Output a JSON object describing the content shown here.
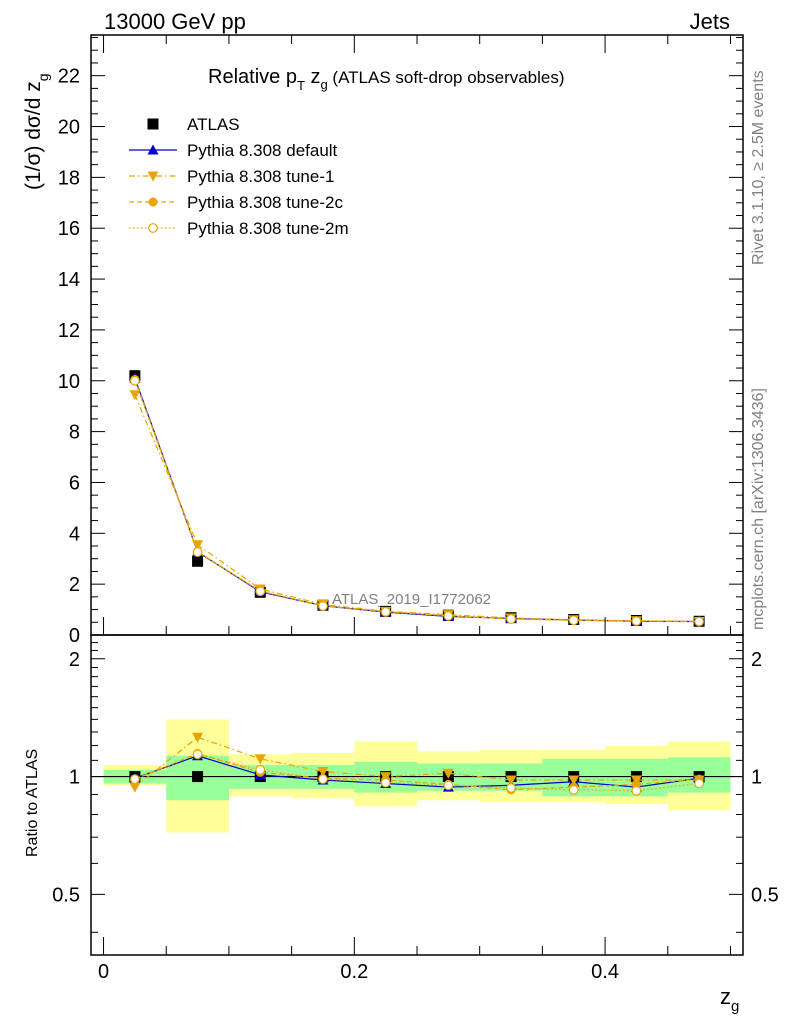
{
  "header": {
    "left": "13000 GeV pp",
    "right": "Jets",
    "side_top": "Rivet 3.1.10, ≥ 2.5M events",
    "side_bottom": "mcplots.cern.ch [arXiv:1306.3436]"
  },
  "title": {
    "main": "Relative p",
    "sub_T": "T",
    "after": " z",
    "sub_g": "g",
    "paren": " (ATLAS soft-drop observables)"
  },
  "watermark": "ATLAS_2019_I1772062",
  "ylabel_main": "(1/σ) dσ/d z",
  "ylabel_sub": "g",
  "ylabel_ratio": "Ratio to ATLAS",
  "xlabel_main": "z",
  "xlabel_sub": "g",
  "colors": {
    "data": "#000000",
    "default": "#0000cc",
    "tune": "#e8a400",
    "band_inner": "#99ff99",
    "band_outer": "#ffff99"
  },
  "chart_data": {
    "type": "line",
    "x": [
      0.025,
      0.075,
      0.125,
      0.175,
      0.225,
      0.275,
      0.325,
      0.375,
      0.425,
      0.475
    ],
    "bin_edges": [
      0.0,
      0.05,
      0.1,
      0.15,
      0.2,
      0.25,
      0.3,
      0.35,
      0.4,
      0.45,
      0.5
    ],
    "xlim": [
      -0.01,
      0.51
    ],
    "main": {
      "ylim": [
        0,
        23.6
      ],
      "yticks": [
        0,
        2,
        4,
        6,
        8,
        10,
        12,
        14,
        16,
        18,
        20,
        22
      ],
      "ytick_labels": [
        "0",
        "2",
        "4",
        "6",
        "8",
        "10",
        "12",
        "14",
        "16",
        "18",
        "20",
        "22"
      ]
    },
    "ratio": {
      "ylim": [
        0.35,
        2.3
      ],
      "yticks": [
        0.5,
        1,
        2
      ],
      "ytick_labels": [
        "0.5",
        "1",
        "2"
      ],
      "band_inner": [
        [
          0.96,
          1.04
        ],
        [
          0.87,
          1.13
        ],
        [
          0.93,
          1.07
        ],
        [
          0.93,
          1.07
        ],
        [
          0.91,
          1.09
        ],
        [
          0.92,
          1.08
        ],
        [
          0.92,
          1.08
        ],
        [
          0.89,
          1.11
        ],
        [
          0.89,
          1.11
        ],
        [
          0.91,
          1.12
        ]
      ],
      "band_outer": [
        [
          0.95,
          1.07
        ],
        [
          0.72,
          1.4
        ],
        [
          0.89,
          1.14
        ],
        [
          0.88,
          1.15
        ],
        [
          0.84,
          1.23
        ],
        [
          0.87,
          1.16
        ],
        [
          0.86,
          1.17
        ],
        [
          0.86,
          1.17
        ],
        [
          0.85,
          1.2
        ],
        [
          0.82,
          1.23
        ]
      ]
    },
    "xticks": [
      0,
      0.2,
      0.4
    ],
    "xtick_labels": [
      "0",
      "0.2",
      "0.4"
    ],
    "series": [
      {
        "name": "ATLAS",
        "marker": "square",
        "values": [
          10.2,
          2.9,
          1.68,
          1.17,
          0.93,
          0.78,
          0.68,
          0.61,
          0.57,
          0.54
        ],
        "ratio": [
          1.0,
          1.0,
          1.0,
          1.0,
          1.0,
          1.0,
          1.0,
          1.0,
          1.0,
          1.0
        ]
      },
      {
        "name": "Pythia 8.308 default",
        "marker": "triangle-up",
        "style": "solid",
        "values": [
          10.1,
          3.27,
          1.7,
          1.15,
          0.9,
          0.73,
          0.65,
          0.59,
          0.54,
          0.53
        ],
        "ratio": [
          0.99,
          1.13,
          1.01,
          0.98,
          0.96,
          0.94,
          0.95,
          0.97,
          0.94,
          0.99
        ]
      },
      {
        "name": "Pythia 8.308 tune-1",
        "marker": "triangle-down",
        "style": "dashdot",
        "values": [
          9.45,
          3.55,
          1.81,
          1.2,
          0.93,
          0.8,
          0.67,
          0.6,
          0.56,
          0.53
        ],
        "ratio": [
          0.94,
          1.26,
          1.11,
          1.03,
          1.0,
          1.02,
          0.98,
          0.98,
          0.98,
          0.98
        ]
      },
      {
        "name": "Pythia 8.308 tune-2c",
        "marker": "circle",
        "style": "dashed",
        "values": [
          10.05,
          3.28,
          1.73,
          1.15,
          0.92,
          0.76,
          0.63,
          0.58,
          0.55,
          0.54
        ],
        "ratio": [
          0.985,
          1.145,
          1.025,
          0.99,
          0.98,
          0.955,
          0.925,
          0.94,
          0.955,
          0.985
        ]
      },
      {
        "name": "Pythia 8.308 tune-2m",
        "marker": "circle-open",
        "style": "dotted",
        "values": [
          10.0,
          3.26,
          1.72,
          1.14,
          0.91,
          0.75,
          0.63,
          0.58,
          0.55,
          0.53
        ],
        "ratio": [
          0.985,
          1.14,
          1.04,
          0.985,
          0.965,
          0.95,
          0.935,
          0.925,
          0.92,
          0.96
        ]
      }
    ]
  }
}
